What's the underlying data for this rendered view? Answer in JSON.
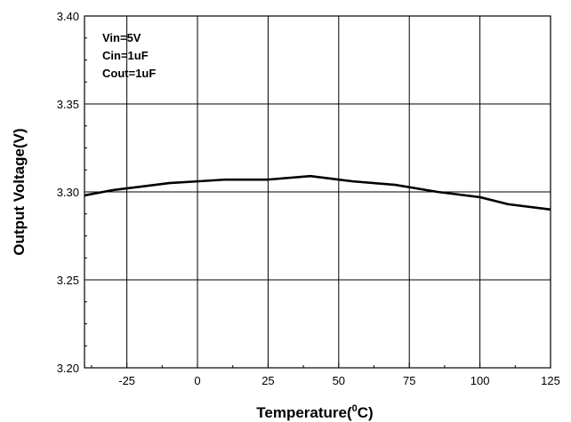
{
  "chart_data": {
    "type": "line",
    "title": "",
    "xlabel": "Temperature(",
    "xlabel_sup": "0",
    "xlabel_suffix": "C)",
    "ylabel": "Output Voltage(V)",
    "xlim": [
      -40,
      125
    ],
    "ylim": [
      3.2,
      3.4
    ],
    "x_ticks": [
      -25,
      0,
      25,
      50,
      75,
      100,
      125
    ],
    "x_tick_labels": [
      "-25",
      "0",
      "25",
      "50",
      "75",
      "100",
      "125"
    ],
    "y_ticks": [
      3.2,
      3.25,
      3.3,
      3.35,
      3.4
    ],
    "y_tick_labels": [
      "3.20",
      "3.25",
      "3.30",
      "3.35",
      "3.40"
    ],
    "grid": true,
    "annotations": [
      "Vin=5V",
      "Cin=1uF",
      "Cout=1uF"
    ],
    "series": [
      {
        "color": "#000000",
        "x": [
          -40,
          -30,
          -20,
          -10,
          0,
          10,
          25,
          40,
          55,
          70,
          85,
          100,
          110,
          125
        ],
        "y": [
          3.298,
          3.301,
          3.303,
          3.305,
          3.306,
          3.307,
          3.307,
          3.309,
          3.306,
          3.304,
          3.3,
          3.297,
          3.293,
          3.29
        ]
      }
    ]
  }
}
